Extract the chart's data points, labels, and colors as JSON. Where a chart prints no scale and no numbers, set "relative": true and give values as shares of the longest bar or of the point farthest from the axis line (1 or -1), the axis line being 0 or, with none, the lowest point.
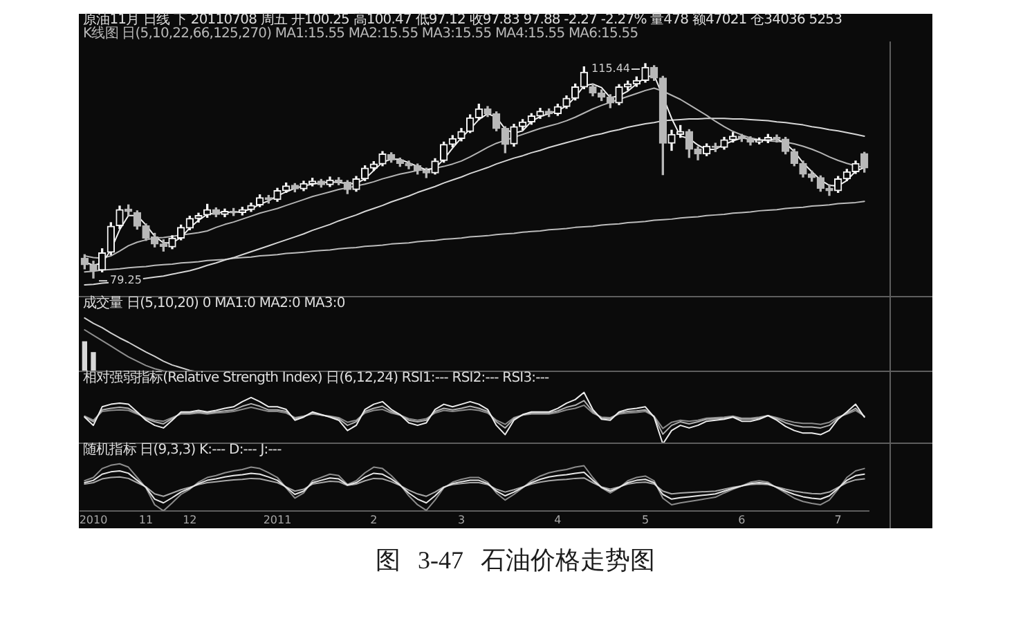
{
  "chart_data": [
    {
      "type": "candlestick",
      "title": "原油11月 日线 下 20110708 周五 开100.25 高100.47 低97.12 收97.83 97.88 -2.27 -2.27% 量478 额47021 仓34036 5253",
      "subtitle": "K线图 日(5,10,22,66,125,270) MA1:15.55 MA2:15.55 MA3:15.55 MA4:15.55 MA6:15.55",
      "categories": [
        null,
        "2010",
        null,
        null,
        null,
        null,
        null,
        "11",
        null,
        null,
        null,
        null,
        "12",
        null,
        null,
        null,
        null,
        null,
        null,
        null,
        null,
        null,
        "2011",
        null,
        null,
        null,
        null,
        null,
        null,
        null,
        null,
        null,
        null,
        "2",
        null,
        null,
        null,
        null,
        null,
        null,
        null,
        null,
        null,
        "3",
        null,
        null,
        null,
        null,
        null,
        null,
        null,
        null,
        null,
        null,
        "4",
        null,
        null,
        null,
        null,
        null,
        null,
        null,
        null,
        null,
        "5",
        null,
        null,
        null,
        null,
        null,
        null,
        null,
        null,
        null,
        null,
        "6",
        null,
        null,
        null,
        null,
        null,
        null,
        null,
        null,
        null,
        null,
        "7",
        null,
        null,
        null
      ],
      "colors": [
        "#b8b8b8",
        "#b8b8b8",
        "#f4f4f4",
        "#f4f4f4",
        "#f4f4f4",
        "#b8b8b8",
        "#b8b8b8",
        "#b8b8b8",
        "#b8b8b8",
        "#b8b8b8",
        "#f4f4f4",
        "#f4f4f4",
        "#f4f4f4",
        "#f4f4f4",
        "#f4f4f4",
        "#b8b8b8",
        "#f4f4f4",
        "#b8b8b8",
        "#f4f4f4",
        "#f4f4f4",
        "#f4f4f4",
        "#b8b8b8",
        "#f4f4f4",
        "#f4f4f4",
        "#b8b8b8",
        "#f4f4f4",
        "#f4f4f4",
        "#b8b8b8",
        "#f4f4f4",
        "#b8b8b8",
        "#b8b8b8",
        "#f4f4f4",
        "#f4f4f4",
        "#f4f4f4",
        "#f4f4f4",
        "#b8b8b8",
        "#b8b8b8",
        "#b8b8b8",
        "#b8b8b8",
        "#b8b8b8",
        "#f4f4f4",
        "#f4f4f4",
        "#f4f4f4",
        "#f4f4f4",
        "#f4f4f4",
        "#f4f4f4",
        "#b8b8b8",
        "#b8b8b8",
        "#b8b8b8",
        "#f4f4f4",
        "#f4f4f4",
        "#f4f4f4",
        "#f4f4f4",
        "#b8b8b8",
        "#f4f4f4",
        "#f4f4f4",
        "#f4f4f4",
        "#f4f4f4",
        "#b8b8b8",
        "#b8b8b8",
        "#b8b8b8",
        "#f4f4f4",
        "#f4f4f4",
        "#f4f4f4",
        "#f4f4f4",
        "#b8b8b8",
        "#b8b8b8",
        "#f4f4f4",
        "#f4f4f4",
        "#b8b8b8",
        "#b8b8b8",
        "#f4f4f4",
        "#b8b8b8",
        "#f4f4f4",
        "#f4f4f4",
        "#b8b8b8",
        "#b8b8b8",
        "#f4f4f4",
        "#f4f4f4",
        "#b8b8b8",
        "#b8b8b8",
        "#b8b8b8",
        "#b8b8b8",
        "#b8b8b8",
        "#b8b8b8",
        "#b8b8b8",
        "#f4f4f4",
        "#f4f4f4",
        "#f4f4f4",
        "#b8b8b8"
      ],
      "ohlc": [
        [
          82.6,
          83.2,
          80.8,
          81.5
        ],
        [
          81.5,
          82.1,
          79.25,
          80.5
        ],
        [
          80.6,
          84.2,
          80.3,
          83.5
        ],
        [
          83.6,
          88.6,
          83.2,
          88
        ],
        [
          88.1,
          91.4,
          87.6,
          90.8
        ],
        [
          90.9,
          91.6,
          89.8,
          90.5
        ],
        [
          90.3,
          90.6,
          87.5,
          88
        ],
        [
          88.1,
          88.4,
          85.6,
          86
        ],
        [
          86.2,
          86.8,
          84.5,
          85
        ],
        [
          85,
          85.7,
          83.8,
          84.6
        ],
        [
          84.5,
          86.4,
          84.2,
          86
        ],
        [
          86,
          88.2,
          85.7,
          87.8
        ],
        [
          87.7,
          89.7,
          87.4,
          89.3
        ],
        [
          89.3,
          90.2,
          88.7,
          89.8
        ],
        [
          89.9,
          91.7,
          89.5,
          90.8
        ],
        [
          90.8,
          91.1,
          89.6,
          90
        ],
        [
          90,
          90.9,
          89.6,
          90.5
        ],
        [
          90.5,
          91,
          89.8,
          90.3
        ],
        [
          90.3,
          91.2,
          89.9,
          90.8
        ],
        [
          90.8,
          91.9,
          90.5,
          91.5
        ],
        [
          91.6,
          93.3,
          91.3,
          92.8
        ],
        [
          92.8,
          93.2,
          91.9,
          92.5
        ],
        [
          92.5,
          94.4,
          92.2,
          94
        ],
        [
          94,
          95.3,
          93.7,
          94.8
        ],
        [
          94.9,
          95.2,
          93.8,
          94.3
        ],
        [
          94.3,
          95.6,
          94,
          95.2
        ],
        [
          95.2,
          96.1,
          94.8,
          95.6
        ],
        [
          95.6,
          95.9,
          94.6,
          95
        ],
        [
          95,
          96.3,
          94.7,
          95.8
        ],
        [
          95.8,
          96.2,
          95,
          95.5
        ],
        [
          95.4,
          95.7,
          93.5,
          94.2
        ],
        [
          94.2,
          96.4,
          93.9,
          96
        ],
        [
          96,
          98.2,
          95.7,
          97.8
        ],
        [
          97.8,
          98.9,
          97.4,
          98.5
        ],
        [
          98.5,
          100.6,
          98.2,
          100.2
        ],
        [
          100.1,
          100.4,
          98.8,
          99.2
        ],
        [
          99.2,
          99.5,
          98.1,
          98.6
        ],
        [
          98.6,
          99,
          97.7,
          98.2
        ],
        [
          98.2,
          98.5,
          96.8,
          97.4
        ],
        [
          97.4,
          97.8,
          96.2,
          97
        ],
        [
          97,
          99.4,
          96.8,
          99
        ],
        [
          99.1,
          102.2,
          98.8,
          101.8
        ],
        [
          101.8,
          103.3,
          101.4,
          102.8
        ],
        [
          102.8,
          104.5,
          102.4,
          104
        ],
        [
          104,
          106.8,
          103.8,
          106.3
        ],
        [
          106.3,
          108.6,
          106,
          107.8
        ],
        [
          107.8,
          108.2,
          106.5,
          107
        ],
        [
          107,
          107.3,
          104.1,
          104.5
        ],
        [
          104.5,
          104.8,
          100.4,
          101.8
        ],
        [
          101.9,
          105.2,
          101.5,
          104.8
        ],
        [
          104.8,
          106,
          104.3,
          105.6
        ],
        [
          105.6,
          107,
          105.2,
          106.6
        ],
        [
          106.6,
          107.9,
          106.2,
          107.4
        ],
        [
          107.4,
          107.8,
          106.5,
          107
        ],
        [
          107,
          108.6,
          106.7,
          108.2
        ],
        [
          108.2,
          110,
          107.9,
          109.6
        ],
        [
          109.6,
          112,
          109.3,
          111.5
        ],
        [
          111.5,
          114.9,
          111.2,
          114
        ],
        [
          111.5,
          112,
          110,
          110.5
        ],
        [
          110.5,
          111,
          109.2,
          109.8
        ],
        [
          109.8,
          110.2,
          108,
          108.8
        ],
        [
          108.8,
          111.9,
          108.5,
          111.5
        ],
        [
          111.5,
          112.5,
          111,
          112
        ],
        [
          112,
          113.2,
          111.6,
          112.6
        ],
        [
          112.6,
          115.44,
          112.3,
          114.8
        ],
        [
          114.8,
          115.1,
          112.6,
          113
        ],
        [
          113,
          113.3,
          96.7,
          102
        ],
        [
          102,
          104.2,
          100.8,
          103.5
        ],
        [
          103.5,
          105,
          103,
          104
        ],
        [
          104,
          104.3,
          99.6,
          101
        ],
        [
          101,
          101.4,
          99.2,
          100.2
        ],
        [
          100.2,
          101.9,
          99.9,
          101.5
        ],
        [
          101.5,
          102,
          100.6,
          101.3
        ],
        [
          101.3,
          103,
          101,
          102.6
        ],
        [
          102.6,
          103.8,
          102.2,
          103.2
        ],
        [
          103.2,
          103.5,
          102.3,
          102.8
        ],
        [
          102.8,
          103.1,
          101.7,
          102.2
        ],
        [
          102.2,
          102.9,
          101.9,
          102.5
        ],
        [
          102.5,
          103.5,
          102.1,
          103
        ],
        [
          103,
          103.4,
          102.2,
          102.7
        ],
        [
          102.7,
          103,
          100.2,
          100.6
        ],
        [
          100.6,
          101,
          98.2,
          98.6
        ],
        [
          98.6,
          99,
          96.3,
          96.8
        ],
        [
          96.8,
          97.3,
          95.6,
          96.2
        ],
        [
          96.2,
          96.5,
          93.9,
          94.4
        ],
        [
          94.4,
          95,
          93.2,
          94
        ],
        [
          94,
          96.4,
          93.7,
          96
        ],
        [
          96,
          97.6,
          95.7,
          97.2
        ],
        [
          97.2,
          99,
          96.9,
          98.6
        ],
        [
          100.25,
          100.47,
          97.12,
          97.83
        ]
      ],
      "series": [
        {
          "type": "line",
          "color": "#f0f0f0",
          "values": [
            82,
            81.4,
            81.8,
            84,
            87.4,
            89.8,
            89.8,
            88.2,
            86.3,
            85.2,
            85.2,
            86.1,
            87.7,
            89,
            90,
            90.2,
            90.4,
            90.3,
            90.5,
            90.9,
            91.7,
            92.3,
            93.1,
            93.8,
            94.4,
            94.8,
            95.1,
            95.3,
            95.5,
            95.4,
            95.2,
            95.2,
            96,
            97.4,
            98.8,
            99.3,
            99.3,
            98.7,
            98.1,
            97.5,
            97.8,
            99.3,
            101.2,
            102.9,
            104.4,
            106,
            107,
            106.4,
            104.4,
            103.7,
            104.1,
            105.7,
            106.5,
            107,
            107.5,
            108.3,
            109.8,
            111.7,
            112,
            111.4,
            109.7,
            110,
            110.8,
            112,
            113.1,
            113.5,
            109.9,
            106.2,
            103.2,
            102.8,
            101.7,
            100.9,
            101,
            101.8,
            102.4,
            102.9,
            102.7,
            102.5,
            102.6,
            102.7,
            102,
            100.6,
            98.7,
            97.2,
            95.8,
            94.9,
            94.8,
            95.7,
            97.3,
            97.9
          ]
        },
        {
          "type": "line",
          "color": "#b4b4b4",
          "values": [
            83,
            82.7,
            82.6,
            83,
            83.8,
            84.7,
            85.3,
            85.7,
            86,
            86.1,
            86.3,
            86.5,
            86.7,
            86.9,
            87.2,
            87.8,
            88.3,
            88.7,
            89.2,
            89.7,
            90.2,
            90.6,
            91,
            91.5,
            92,
            92.5,
            93,
            93.4,
            93.8,
            94.2,
            94.5,
            94.8,
            95.1,
            95.5,
            96,
            96.4,
            96.8,
            97.1,
            97.4,
            97.6,
            97.8,
            98.1,
            98.5,
            99,
            99.7,
            100.5,
            101.3,
            102,
            102.5,
            103,
            103.5,
            104,
            104.5,
            104.9,
            105.3,
            105.8,
            106.4,
            107.1,
            107.8,
            108.4,
            108.9,
            109.4,
            109.9,
            110.4,
            110.9,
            111.3,
            110.8,
            110.1,
            109.4,
            108.5,
            107.6,
            106.7,
            105.7,
            104.8,
            104,
            103.4,
            102.9,
            102.6,
            102.4,
            102.3,
            102.2,
            101.9,
            101.5,
            101,
            100.4,
            99.7,
            99.1,
            98.6,
            98.2,
            97.9
          ]
        },
        {
          "type": "line",
          "color": "#d6d6d6",
          "values": [
            78.1,
            78.2,
            78.4,
            78.5,
            78.7,
            78.8,
            79,
            79.2,
            79.4,
            79.6,
            79.9,
            80.2,
            80.5,
            80.9,
            81.4,
            81.8,
            82.3,
            82.7,
            83.2,
            83.7,
            84.2,
            84.7,
            85.2,
            85.7,
            86.2,
            86.7,
            87.3,
            87.8,
            88.3,
            88.9,
            89.4,
            89.9,
            90.5,
            91,
            91.5,
            92.1,
            92.6,
            93.1,
            93.7,
            94.2,
            94.7,
            95.3,
            95.8,
            96.3,
            96.9,
            97.4,
            97.9,
            98.5,
            99,
            99.5,
            99.9,
            100.4,
            100.8,
            101.3,
            101.7,
            102.1,
            102.5,
            102.9,
            103.3,
            103.6,
            104,
            104.3,
            104.7,
            105,
            105.3,
            105.5,
            105.8,
            105.9,
            106,
            106.1,
            106.1,
            106.2,
            106.2,
            106.2,
            106.1,
            106.1,
            106,
            105.9,
            105.8,
            105.6,
            105.5,
            105.3,
            105.1,
            104.8,
            104.6,
            104.3,
            104.1,
            103.8,
            103.5,
            103.2
          ]
        },
        {
          "type": "line",
          "color": "#bcbcbc",
          "values": [
            80.3,
            80.4,
            80.6,
            80.7,
            80.8,
            81,
            81.1,
            81.2,
            81.4,
            81.5,
            81.6,
            81.8,
            81.9,
            82,
            82.2,
            82.3,
            82.4,
            82.6,
            82.7,
            82.8,
            83,
            83.1,
            83.2,
            83.4,
            83.5,
            83.6,
            83.8,
            83.9,
            84,
            84.2,
            84.3,
            84.4,
            84.6,
            84.7,
            84.8,
            85,
            85.1,
            85.2,
            85.4,
            85.5,
            85.6,
            85.8,
            85.9,
            86,
            86.2,
            86.3,
            86.4,
            86.6,
            86.7,
            86.8,
            87,
            87.1,
            87.2,
            87.4,
            87.5,
            87.6,
            87.8,
            87.9,
            88,
            88.2,
            88.3,
            88.4,
            88.6,
            88.7,
            88.8,
            89,
            89.1,
            89.2,
            89.4,
            89.5,
            89.6,
            89.8,
            89.9,
            90,
            90.2,
            90.3,
            90.4,
            90.6,
            90.7,
            90.8,
            91,
            91.1,
            91.2,
            91.4,
            91.5,
            91.6,
            91.8,
            91.9,
            92,
            92.2
          ]
        }
      ],
      "annotations": [
        "115.44",
        "79.25",
        "图 3-47 石油价格走势图"
      ],
      "tick_labels": false
    },
    {
      "type": "bar",
      "relative": true,
      "title": "成交量 日(5,10,20) 0 MA1:0 MA2:0 MA3:0",
      "categories": [
        null,
        "2010",
        null,
        null,
        null,
        null,
        null,
        "11",
        null,
        null,
        null,
        null,
        "12",
        null,
        null,
        null,
        null,
        null,
        null,
        null,
        null,
        null,
        "2011",
        null,
        null,
        null,
        null,
        null,
        null,
        null,
        null,
        null,
        null,
        "2",
        null,
        null,
        null,
        null,
        null,
        null,
        null,
        null,
        null,
        "3",
        null,
        null,
        null,
        null,
        null,
        null,
        null,
        null,
        null,
        null,
        "4",
        null,
        null,
        null,
        null,
        null,
        null,
        null,
        null,
        null,
        "5",
        null,
        null,
        null,
        null,
        null,
        null,
        null,
        null,
        null,
        null,
        "6",
        null,
        null,
        null,
        null,
        null,
        null,
        null,
        null,
        null,
        null,
        "7",
        null,
        null,
        null
      ],
      "series": [
        {
          "color": "#d8d8d8",
          "values": [
            0.56,
            0.36,
            null,
            null,
            null,
            null,
            null,
            null,
            null,
            null,
            null,
            null,
            null,
            null,
            null,
            null,
            null,
            null,
            null,
            null,
            null,
            null,
            null,
            null,
            null,
            null,
            null,
            null,
            null,
            null,
            null,
            null,
            null,
            null,
            null,
            null,
            null,
            null,
            null,
            null,
            null,
            null,
            null,
            null,
            null,
            null,
            null,
            null,
            null,
            null,
            null,
            null,
            null,
            null,
            null,
            null,
            null,
            null,
            null,
            null,
            null,
            null,
            null,
            null,
            null,
            null,
            null,
            null,
            null,
            null,
            null,
            null,
            null,
            null,
            null,
            null,
            null,
            null,
            null,
            null,
            null,
            null,
            null,
            null,
            null,
            null,
            null,
            null,
            null,
            null
          ]
        },
        {
          "type": "line",
          "color": "#cfcfcf",
          "values": [
            1,
            0.9,
            0.82,
            0.72,
            0.63,
            0.55,
            0.46,
            0.37,
            0.29,
            0.2,
            0.13,
            0.08,
            0.03,
            0,
            null,
            null,
            null,
            null,
            null,
            null,
            null,
            null,
            null,
            null,
            null,
            null,
            null,
            null,
            null,
            null,
            null,
            null,
            null,
            null,
            null,
            null,
            null,
            null,
            null,
            null,
            null,
            null,
            null,
            null,
            null,
            null,
            null,
            null,
            null,
            null,
            null,
            null,
            null,
            null,
            null,
            null,
            null,
            null,
            null,
            null,
            null,
            null,
            null,
            null,
            null,
            null,
            null,
            null,
            null,
            null,
            null,
            null,
            null,
            null,
            null,
            null,
            null,
            null,
            null,
            null,
            null,
            null,
            null,
            null,
            null,
            null,
            null,
            null,
            null,
            null
          ]
        },
        {
          "type": "line",
          "color": "#8f8f8f",
          "values": [
            0.78,
            0.68,
            0.58,
            0.48,
            0.38,
            0.28,
            0.2,
            0.12,
            0.06,
            0.02,
            0,
            null,
            null,
            null,
            null,
            null,
            null,
            null,
            null,
            null,
            null,
            null,
            null,
            null,
            null,
            null,
            null,
            null,
            null,
            null,
            null,
            null,
            null,
            null,
            null,
            null,
            null,
            null,
            null,
            null,
            null,
            null,
            null,
            null,
            null,
            null,
            null,
            null,
            null,
            null,
            null,
            null,
            null,
            null,
            null,
            null,
            null,
            null,
            null,
            null,
            null,
            null,
            null,
            null,
            null,
            null,
            null,
            null,
            null,
            null,
            null,
            null,
            null,
            null,
            null,
            null,
            null,
            null,
            null,
            null,
            null,
            null,
            null,
            null,
            null,
            null,
            null,
            null,
            null,
            null
          ]
        }
      ],
      "tick_labels": false
    },
    {
      "type": "line",
      "relative": true,
      "title": "相对强弱指标(Relative Strength Index) 日(6,12,24) RSI1:--- RSI2:--- RSI3:---",
      "categories": [
        null,
        "2010",
        null,
        null,
        null,
        null,
        null,
        "11",
        null,
        null,
        null,
        null,
        "12",
        null,
        null,
        null,
        null,
        null,
        null,
        null,
        null,
        null,
        "2011",
        null,
        null,
        null,
        null,
        null,
        null,
        null,
        null,
        null,
        null,
        "2",
        null,
        null,
        null,
        null,
        null,
        null,
        null,
        null,
        null,
        "3",
        null,
        null,
        null,
        null,
        null,
        null,
        null,
        null,
        null,
        null,
        "4",
        null,
        null,
        null,
        null,
        null,
        null,
        null,
        null,
        null,
        "5",
        null,
        null,
        null,
        null,
        null,
        null,
        null,
        null,
        null,
        null,
        "6",
        null,
        null,
        null,
        null,
        null,
        null,
        null,
        null,
        null,
        null,
        "7",
        null,
        null,
        null
      ],
      "series": [
        {
          "color": "#ececec",
          "values": [
            0.52,
            0.36,
            0.72,
            0.77,
            0.79,
            0.77,
            0.62,
            0.46,
            0.36,
            0.31,
            0.46,
            0.62,
            0.62,
            0.65,
            0.62,
            0.65,
            0.69,
            0.72,
            0.82,
            0.9,
            0.82,
            0.72,
            0.72,
            0.67,
            0.46,
            0.52,
            0.62,
            0.57,
            0.52,
            0.46,
            0.26,
            0.36,
            0.67,
            0.77,
            0.82,
            0.67,
            0.57,
            0.41,
            0.36,
            0.41,
            0.67,
            0.77,
            0.72,
            0.77,
            0.82,
            0.77,
            0.67,
            0.36,
            0.18,
            0.46,
            0.57,
            0.62,
            0.62,
            0.62,
            0.69,
            0.79,
            0.86,
            1,
            0.67,
            0.48,
            0.46,
            0.62,
            0.67,
            0.69,
            0.72,
            0.52,
            0,
            0.26,
            0.36,
            0.31,
            0.36,
            0.44,
            0.46,
            0.48,
            0.52,
            0.44,
            0.44,
            0.48,
            0.55,
            0.46,
            0.34,
            0.26,
            0.21,
            0.21,
            0.18,
            0.26,
            0.48,
            0.62,
            0.77,
            0.52
          ]
        },
        {
          "color": "#b0b0b0",
          "values": [
            0.53,
            0.43,
            0.66,
            0.69,
            0.71,
            0.69,
            0.6,
            0.49,
            0.43,
            0.39,
            0.49,
            0.6,
            0.6,
            0.62,
            0.6,
            0.62,
            0.64,
            0.66,
            0.73,
            0.78,
            0.73,
            0.66,
            0.66,
            0.63,
            0.49,
            0.53,
            0.6,
            0.56,
            0.53,
            0.49,
            0.36,
            0.43,
            0.63,
            0.69,
            0.73,
            0.63,
            0.56,
            0.46,
            0.43,
            0.46,
            0.63,
            0.69,
            0.66,
            0.69,
            0.73,
            0.69,
            0.63,
            0.43,
            0.31,
            0.49,
            0.56,
            0.6,
            0.6,
            0.6,
            0.64,
            0.71,
            0.75,
            0.84,
            0.63,
            0.5,
            0.49,
            0.6,
            0.63,
            0.64,
            0.66,
            0.53,
            0.19,
            0.36,
            0.43,
            0.39,
            0.43,
            0.48,
            0.49,
            0.5,
            0.53,
            0.48,
            0.48,
            0.5,
            0.55,
            0.49,
            0.41,
            0.36,
            0.33,
            0.33,
            0.31,
            0.36,
            0.5,
            0.6,
            0.69,
            0.53
          ]
        },
        {
          "color": "#8a8a8a",
          "values": [
            0.54,
            0.46,
            0.63,
            0.65,
            0.66,
            0.65,
            0.58,
            0.51,
            0.46,
            0.44,
            0.51,
            0.58,
            0.58,
            0.6,
            0.58,
            0.6,
            0.61,
            0.63,
            0.67,
            0.71,
            0.67,
            0.63,
            0.63,
            0.6,
            0.51,
            0.54,
            0.58,
            0.56,
            0.54,
            0.51,
            0.42,
            0.46,
            0.6,
            0.65,
            0.67,
            0.6,
            0.56,
            0.49,
            0.46,
            0.49,
            0.6,
            0.65,
            0.63,
            0.65,
            0.67,
            0.65,
            0.6,
            0.46,
            0.38,
            0.51,
            0.56,
            0.58,
            0.58,
            0.58,
            0.61,
            0.66,
            0.69,
            0.75,
            0.6,
            0.52,
            0.51,
            0.58,
            0.6,
            0.61,
            0.63,
            0.54,
            0.3,
            0.42,
            0.46,
            0.44,
            0.46,
            0.5,
            0.51,
            0.52,
            0.54,
            0.5,
            0.5,
            0.52,
            0.55,
            0.51,
            0.46,
            0.42,
            0.4,
            0.4,
            0.38,
            0.42,
            0.52,
            0.58,
            0.65,
            0.54
          ]
        }
      ],
      "tick_labels": false
    },
    {
      "type": "line",
      "relative": true,
      "title": "随机指标 日(9,3,3) K:--- D:--- J:---",
      "categories": [
        null,
        "2010",
        null,
        null,
        null,
        null,
        null,
        "11",
        null,
        null,
        null,
        null,
        "12",
        null,
        null,
        null,
        null,
        null,
        null,
        null,
        null,
        null,
        "2011",
        null,
        null,
        null,
        null,
        null,
        null,
        null,
        null,
        null,
        null,
        "2",
        null,
        null,
        null,
        null,
        null,
        null,
        null,
        null,
        null,
        "3",
        null,
        null,
        null,
        null,
        null,
        null,
        null,
        null,
        null,
        null,
        "4",
        null,
        null,
        null,
        null,
        null,
        null,
        null,
        null,
        null,
        "5",
        null,
        null,
        null,
        null,
        null,
        null,
        null,
        null,
        null,
        null,
        "6",
        null,
        null,
        null,
        null,
        null,
        null,
        null,
        null,
        null,
        null,
        "7",
        null,
        null,
        null
      ],
      "series": [
        {
          "color": "#e6e6e6",
          "values": [
            0.6,
            0.65,
            0.78,
            0.83,
            0.85,
            0.8,
            0.65,
            0.5,
            0.25,
            0.17,
            0.28,
            0.4,
            0.48,
            0.58,
            0.65,
            0.68,
            0.72,
            0.75,
            0.77,
            0.8,
            0.78,
            0.72,
            0.65,
            0.5,
            0.35,
            0.42,
            0.6,
            0.65,
            0.7,
            0.68,
            0.55,
            0.6,
            0.72,
            0.8,
            0.78,
            0.68,
            0.55,
            0.38,
            0.25,
            0.17,
            0.32,
            0.5,
            0.58,
            0.62,
            0.65,
            0.65,
            0.58,
            0.42,
            0.32,
            0.4,
            0.5,
            0.6,
            0.67,
            0.72,
            0.75,
            0.77,
            0.8,
            0.82,
            0.65,
            0.5,
            0.42,
            0.5,
            0.6,
            0.65,
            0.67,
            0.6,
            0.35,
            0.25,
            0.28,
            0.3,
            0.32,
            0.34,
            0.36,
            0.42,
            0.48,
            0.53,
            0.58,
            0.6,
            0.58,
            0.5,
            0.42,
            0.35,
            0.3,
            0.27,
            0.25,
            0.32,
            0.48,
            0.65,
            0.75,
            0.78
          ]
        },
        {
          "color": "#a8a8a8",
          "values": [
            0.57,
            0.6,
            0.68,
            0.71,
            0.72,
            0.69,
            0.6,
            0.51,
            0.36,
            0.31,
            0.38,
            0.45,
            0.5,
            0.56,
            0.6,
            0.62,
            0.64,
            0.66,
            0.67,
            0.69,
            0.68,
            0.64,
            0.6,
            0.51,
            0.42,
            0.46,
            0.57,
            0.6,
            0.63,
            0.62,
            0.54,
            0.57,
            0.64,
            0.69,
            0.68,
            0.62,
            0.54,
            0.44,
            0.36,
            0.31,
            0.4,
            0.51,
            0.56,
            0.58,
            0.6,
            0.6,
            0.56,
            0.46,
            0.4,
            0.45,
            0.51,
            0.57,
            0.61,
            0.64,
            0.66,
            0.67,
            0.69,
            0.7,
            0.6,
            0.51,
            0.46,
            0.51,
            0.57,
            0.6,
            0.61,
            0.57,
            0.42,
            0.36,
            0.38,
            0.39,
            0.4,
            0.41,
            0.42,
            0.46,
            0.5,
            0.53,
            0.56,
            0.57,
            0.56,
            0.51,
            0.46,
            0.42,
            0.39,
            0.37,
            0.36,
            0.4,
            0.5,
            0.6,
            0.66,
            0.68
          ]
        },
        {
          "color": "#8c8c8c",
          "values": [
            0.64,
            0.71,
            0.9,
            0.97,
            1,
            0.93,
            0.71,
            0.49,
            0.13,
            0,
            0.17,
            0.35,
            0.46,
            0.61,
            0.71,
            0.75,
            0.81,
            0.85,
            0.88,
            0.93,
            0.9,
            0.81,
            0.71,
            0.49,
            0.27,
            0.38,
            0.64,
            0.71,
            0.78,
            0.75,
            0.56,
            0.64,
            0.81,
            0.93,
            0.9,
            0.75,
            0.56,
            0.32,
            0.13,
            0.01,
            0.23,
            0.49,
            0.61,
            0.67,
            0.71,
            0.71,
            0.61,
            0.38,
            0.23,
            0.35,
            0.49,
            0.64,
            0.74,
            0.81,
            0.85,
            0.88,
            0.93,
            0.96,
            0.71,
            0.49,
            0.38,
            0.49,
            0.64,
            0.71,
            0.74,
            0.64,
            0.27,
            0.13,
            0.17,
            0.2,
            0.23,
            0.26,
            0.29,
            0.38,
            0.46,
            0.53,
            0.61,
            0.64,
            0.61,
            0.49,
            0.38,
            0.27,
            0.2,
            0.16,
            0.13,
            0.23,
            0.46,
            0.71,
            0.85,
            0.9
          ]
        }
      ],
      "tick_labels": "x"
    }
  ]
}
